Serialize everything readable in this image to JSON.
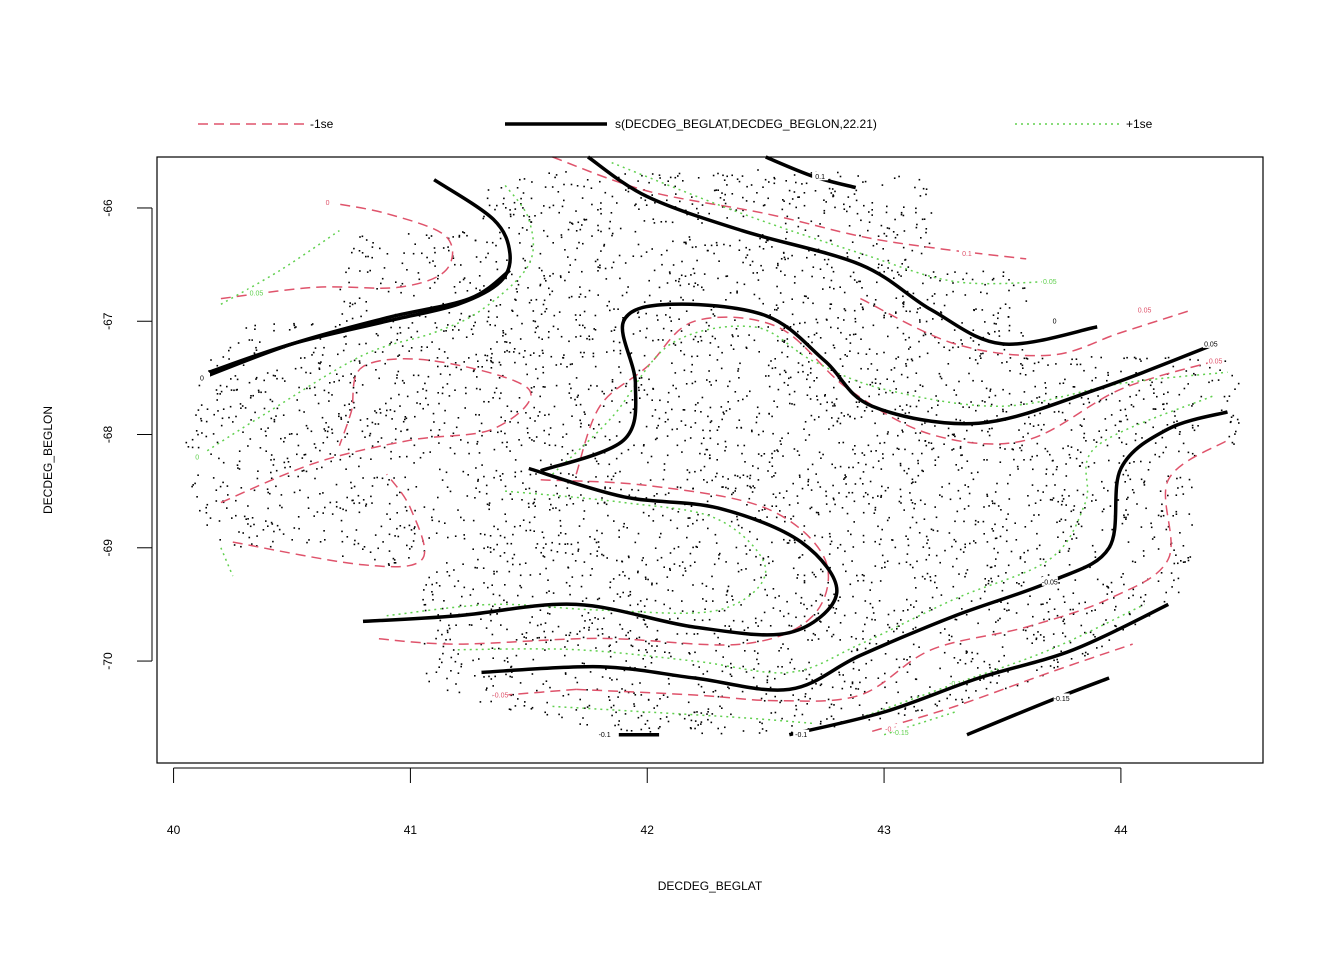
{
  "chart_data": {
    "type": "contour",
    "xlabel": "DECDEG_BEGLAT",
    "ylabel": "DECDEG_BEGLON",
    "xlim": [
      39.93,
      44.6
    ],
    "ylim": [
      -70.9,
      -65.55
    ],
    "xticks": [
      40,
      41,
      42,
      43,
      44
    ],
    "yticks": [
      -66,
      -67,
      -68,
      -69,
      -70
    ],
    "legend": {
      "placement": "top",
      "entries": [
        {
          "key": "minus_se",
          "label": "-1se",
          "color": "#DF536B",
          "style": "dashed"
        },
        {
          "key": "fit",
          "label": "s(DECDEG_BEGLAT,DECDEG_BEGLON,22.21)",
          "color": "#000000",
          "style": "solid"
        },
        {
          "key": "plus_se",
          "label": "+1se",
          "color": "#61D04F",
          "style": "dotted"
        }
      ]
    },
    "contours": {
      "fit": [
        {
          "level": "0.1",
          "points": [
            [
              42.5,
              -65.55
            ],
            [
              42.7,
              -65.72
            ],
            [
              42.88,
              -65.82
            ]
          ],
          "label_at": [
            42.73,
            -65.72
          ]
        },
        {
          "level": "0.05",
          "points": [
            [
              40.15,
              -67.45
            ],
            [
              40.5,
              -67.2
            ],
            [
              40.9,
              -67.0
            ],
            [
              41.2,
              -66.85
            ],
            [
              41.38,
              -66.65
            ],
            [
              41.42,
              -66.4
            ],
            [
              41.35,
              -66.1
            ],
            [
              41.1,
              -65.75
            ]
          ]
        },
        {
          "level": "0",
          "points": [
            [
              40.12,
              -67.5
            ],
            [
              40.5,
              -67.2
            ],
            [
              40.9,
              -66.97
            ],
            [
              41.25,
              -66.8
            ],
            [
              41.42,
              -66.55
            ]
          ],
          "label_at": [
            40.12,
            -67.5
          ]
        },
        {
          "level": "0",
          "points": [
            [
              41.75,
              -65.55
            ],
            [
              42.0,
              -65.9
            ],
            [
              42.4,
              -66.2
            ],
            [
              42.9,
              -66.5
            ],
            [
              43.2,
              -66.9
            ],
            [
              43.5,
              -67.2
            ],
            [
              43.9,
              -67.05
            ]
          ],
          "label_at": [
            43.72,
            -67.0
          ]
        },
        {
          "level": "0.05",
          "points": [
            [
              41.55,
              -68.32
            ],
            [
              41.9,
              -68.05
            ],
            [
              41.95,
              -67.55
            ],
            [
              41.9,
              -67.0
            ],
            [
              42.1,
              -66.85
            ],
            [
              42.5,
              -66.95
            ],
            [
              42.75,
              -67.35
            ],
            [
              42.95,
              -67.75
            ],
            [
              43.4,
              -67.9
            ],
            [
              43.9,
              -67.6
            ],
            [
              44.4,
              -67.2
            ]
          ],
          "label_at": [
            44.38,
            -67.2
          ]
        },
        {
          "level": "0",
          "points": [
            [
              41.5,
              -68.3
            ],
            [
              41.9,
              -68.55
            ],
            [
              42.3,
              -68.65
            ],
            [
              42.65,
              -68.95
            ],
            [
              42.8,
              -69.4
            ],
            [
              42.6,
              -69.75
            ],
            [
              42.2,
              -69.7
            ],
            [
              41.7,
              -69.5
            ],
            [
              41.2,
              -69.6
            ],
            [
              40.8,
              -69.65
            ]
          ]
        },
        {
          "level": "-0.05",
          "points": [
            [
              41.3,
              -70.1
            ],
            [
              41.8,
              -70.05
            ],
            [
              42.2,
              -70.15
            ],
            [
              42.6,
              -70.25
            ],
            [
              42.9,
              -69.95
            ],
            [
              43.3,
              -69.6
            ],
            [
              43.7,
              -69.3
            ],
            [
              43.95,
              -69.0
            ],
            [
              44.0,
              -68.3
            ],
            [
              44.2,
              -67.95
            ],
            [
              44.45,
              -67.8
            ]
          ],
          "label_at": [
            43.7,
            -69.3
          ]
        },
        {
          "level": "-0.1",
          "points": [
            [
              42.6,
              -70.65
            ],
            [
              43.0,
              -70.45
            ],
            [
              43.4,
              -70.15
            ],
            [
              43.8,
              -69.9
            ],
            [
              44.2,
              -69.5
            ]
          ],
          "label_at": [
            42.65,
            -70.65
          ]
        },
        {
          "level": "-0.1",
          "points": [
            [
              41.88,
              -70.65
            ],
            [
              42.05,
              -70.65
            ]
          ],
          "label_at": [
            41.82,
            -70.65
          ]
        },
        {
          "level": "-0.15",
          "points": [
            [
              43.35,
              -70.65
            ],
            [
              43.7,
              -70.35
            ],
            [
              43.95,
              -70.15
            ]
          ],
          "label_at": [
            43.75,
            -70.33
          ]
        }
      ],
      "minus_se": [
        {
          "level": "0",
          "points": [
            [
              40.2,
              -66.8
            ],
            [
              40.6,
              -66.7
            ],
            [
              40.95,
              -66.7
            ],
            [
              41.15,
              -66.55
            ],
            [
              41.15,
              -66.25
            ],
            [
              40.9,
              -66.05
            ],
            [
              40.65,
              -65.95
            ]
          ],
          "label_at": [
            40.65,
            -65.95
          ]
        },
        {
          "level": "0.1",
          "points": [
            [
              41.6,
              -65.55
            ],
            [
              42.0,
              -65.85
            ],
            [
              42.5,
              -66.05
            ],
            [
              42.9,
              -66.25
            ],
            [
              43.2,
              -66.35
            ],
            [
              43.6,
              -66.45
            ]
          ],
          "label_at": [
            43.35,
            -66.4
          ]
        },
        {
          "level": "0.05",
          "points": [
            [
              40.2,
              -68.6
            ],
            [
              40.6,
              -68.25
            ],
            [
              41.0,
              -68.05
            ],
            [
              41.35,
              -67.95
            ],
            [
              41.5,
              -67.6
            ],
            [
              41.1,
              -67.35
            ],
            [
              40.8,
              -67.4
            ],
            [
              40.75,
              -67.8
            ],
            [
              40.7,
              -68.1
            ]
          ]
        },
        {
          "level": "0.05",
          "points": [
            [
              41.7,
              -68.35
            ],
            [
              41.8,
              -67.75
            ],
            [
              42.0,
              -67.4
            ],
            [
              42.2,
              -67.0
            ],
            [
              42.55,
              -67.05
            ],
            [
              42.85,
              -67.6
            ],
            [
              43.2,
              -68.0
            ],
            [
              43.6,
              -68.05
            ],
            [
              44.0,
              -67.6
            ],
            [
              44.4,
              -67.35
            ]
          ],
          "label_at": [
            44.4,
            -67.35
          ]
        },
        {
          "level": "0.05",
          "points": [
            [
              42.9,
              -66.8
            ],
            [
              43.3,
              -67.2
            ],
            [
              43.7,
              -67.3
            ],
            [
              44.0,
              -67.1
            ],
            [
              44.3,
              -66.9
            ]
          ],
          "label_at": [
            44.1,
            -66.9
          ]
        },
        {
          "level": "0",
          "points": [
            [
              41.55,
              -68.4
            ],
            [
              42.0,
              -68.45
            ],
            [
              42.5,
              -68.65
            ],
            [
              42.75,
              -69.1
            ],
            [
              42.7,
              -69.6
            ],
            [
              42.4,
              -69.85
            ],
            [
              41.8,
              -69.8
            ],
            [
              41.2,
              -69.85
            ],
            [
              40.85,
              -69.8
            ]
          ]
        },
        {
          "level": "0",
          "points": [
            [
              40.25,
              -68.95
            ],
            [
              40.8,
              -69.15
            ],
            [
              41.05,
              -69.1
            ],
            [
              41.0,
              -68.65
            ],
            [
              40.9,
              -68.35
            ]
          ]
        },
        {
          "level": "-0.05",
          "points": [
            [
              41.7,
              -70.25
            ],
            [
              42.2,
              -70.3
            ],
            [
              42.55,
              -70.35
            ],
            [
              42.9,
              -70.3
            ],
            [
              43.2,
              -69.9
            ],
            [
              43.6,
              -69.7
            ],
            [
              43.95,
              -69.45
            ],
            [
              44.2,
              -69.1
            ],
            [
              44.2,
              -68.4
            ],
            [
              44.45,
              -68.05
            ]
          ]
        },
        {
          "level": "-0.05",
          "points": [
            [
              41.7,
              -70.25
            ],
            [
              41.4,
              -70.3
            ]
          ],
          "label_at": [
            41.38,
            -70.3
          ]
        },
        {
          "level": "-0.1",
          "points": [
            [
              42.95,
              -70.62
            ],
            [
              43.3,
              -70.4
            ],
            [
              43.7,
              -70.1
            ],
            [
              44.05,
              -69.85
            ]
          ],
          "label_at": [
            43.03,
            -70.6
          ]
        }
      ],
      "plus_se": [
        {
          "level": "0",
          "points": [
            [
              40.1,
              -68.2
            ],
            [
              40.4,
              -67.8
            ],
            [
              40.8,
              -67.3
            ],
            [
              41.1,
              -67.1
            ],
            [
              41.3,
              -66.9
            ],
            [
              41.5,
              -66.5
            ],
            [
              41.5,
              -66.1
            ],
            [
              41.4,
              -65.8
            ]
          ],
          "label_at": [
            40.1,
            -68.2
          ]
        },
        {
          "level": "0.05",
          "points": [
            [
              40.2,
              -66.85
            ],
            [
              40.45,
              -66.55
            ],
            [
              40.7,
              -66.2
            ]
          ],
          "label_at": [
            40.35,
            -66.75
          ]
        },
        {
          "level": "0.05",
          "points": [
            [
              41.85,
              -65.6
            ],
            [
              42.4,
              -66.05
            ],
            [
              42.9,
              -66.4
            ],
            [
              43.3,
              -66.65
            ],
            [
              43.7,
              -66.65
            ]
          ],
          "label_at": [
            43.7,
            -66.65
          ]
        },
        {
          "level": "0.05",
          "points": [
            [
              41.6,
              -68.35
            ],
            [
              41.85,
              -67.85
            ],
            [
              42.1,
              -67.2
            ],
            [
              42.45,
              -67.05
            ],
            [
              42.7,
              -67.35
            ],
            [
              43.0,
              -67.6
            ],
            [
              43.5,
              -67.75
            ],
            [
              44.0,
              -67.55
            ],
            [
              44.45,
              -67.45
            ]
          ]
        },
        {
          "level": "0",
          "points": [
            [
              41.4,
              -68.5
            ],
            [
              41.9,
              -68.6
            ],
            [
              42.3,
              -68.75
            ],
            [
              42.5,
              -69.2
            ],
            [
              42.3,
              -69.55
            ],
            [
              41.8,
              -69.55
            ],
            [
              41.35,
              -69.5
            ],
            [
              40.9,
              -69.6
            ]
          ]
        },
        {
          "level": "0",
          "points": [
            [
              41.2,
              -69.9
            ],
            [
              41.7,
              -69.9
            ],
            [
              42.2,
              -70.0
            ],
            [
              42.6,
              -70.1
            ],
            [
              42.9,
              -69.85
            ],
            [
              43.3,
              -69.45
            ],
            [
              43.7,
              -69.1
            ],
            [
              43.85,
              -68.6
            ],
            [
              43.9,
              -68.1
            ],
            [
              44.4,
              -67.65
            ]
          ]
        },
        {
          "level": "-0.05",
          "points": [
            [
              41.6,
              -70.4
            ],
            [
              42.0,
              -70.45
            ],
            [
              42.4,
              -70.5
            ],
            [
              42.7,
              -70.55
            ]
          ]
        },
        {
          "level": "-0.1",
          "points": [
            [
              42.9,
              -70.5
            ],
            [
              43.3,
              -70.2
            ],
            [
              43.7,
              -69.9
            ],
            [
              44.1,
              -69.5
            ]
          ],
          "label_at": [
            43.3,
            -70.2
          ]
        },
        {
          "level": "-0.15",
          "points": [
            [
              43.0,
              -70.65
            ],
            [
              43.3,
              -70.45
            ]
          ],
          "label_at": [
            43.07,
            -70.63
          ]
        },
        {
          "level": "0",
          "points": [
            [
              40.2,
              -69.0
            ],
            [
              40.25,
              -69.25
            ]
          ]
        }
      ]
    },
    "rug_points": "dense scatter of observation locations covering the central region"
  }
}
